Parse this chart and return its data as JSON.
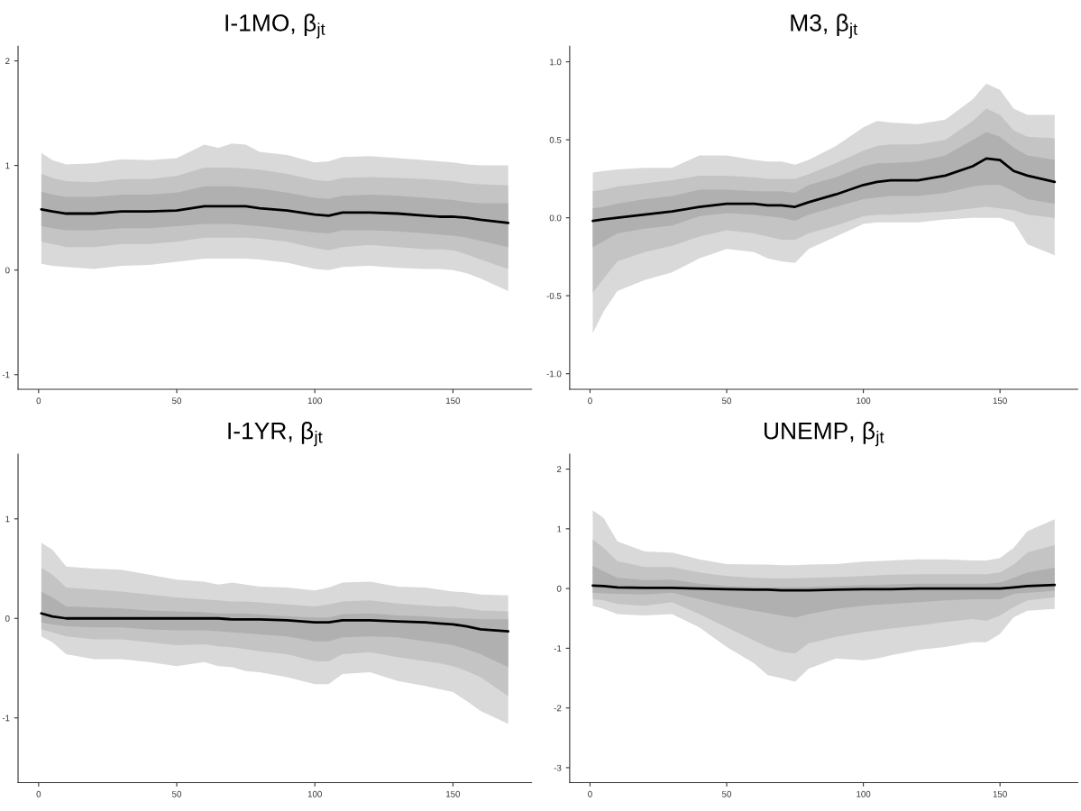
{
  "chart_data": [
    {
      "type": "line",
      "title": "I-1MO, β$_{jt}$",
      "x": [
        1,
        5,
        10,
        20,
        30,
        40,
        50,
        60,
        65,
        70,
        75,
        80,
        90,
        100,
        105,
        110,
        120,
        130,
        140,
        145,
        150,
        155,
        160,
        170
      ],
      "xlim": [
        -7.45,
        178.45
      ],
      "xticks": [
        0,
        50,
        100,
        150
      ],
      "ylim": [
        -1.14,
        2.14
      ],
      "yticks": [
        -1,
        0,
        1,
        2
      ],
      "grid": false,
      "legend": false,
      "series": [
        {
          "color": "#d9d9d9",
          "values": [
            null,
            null,
            null,
            null,
            null,
            null,
            null,
            null,
            null,
            null,
            null,
            null,
            null,
            null,
            null,
            null,
            null,
            null,
            null,
            null,
            null,
            null,
            null,
            null
          ],
          "lower": [
            0.06,
            0.04,
            0.03,
            0.01,
            0.04,
            0.05,
            0.08,
            0.11,
            0.11,
            0.11,
            0.11,
            0.1,
            0.07,
            0.01,
            0.0,
            0.03,
            0.04,
            0.02,
            0.01,
            0.01,
            0.0,
            -0.03,
            -0.08,
            -0.2
          ],
          "upper": [
            1.12,
            1.05,
            1.01,
            1.02,
            1.06,
            1.05,
            1.07,
            1.2,
            1.17,
            1.21,
            1.2,
            1.13,
            1.1,
            1.03,
            1.04,
            1.08,
            1.09,
            1.07,
            1.05,
            1.04,
            1.03,
            1.01,
            1.0,
            1.0
          ]
        },
        {
          "color": "#c4c4c4",
          "values": [
            null,
            null,
            null,
            null,
            null,
            null,
            null,
            null,
            null,
            null,
            null,
            null,
            null,
            null,
            null,
            null,
            null,
            null,
            null,
            null,
            null,
            null,
            null,
            null
          ],
          "lower": [
            0.27,
            0.25,
            0.22,
            0.22,
            0.25,
            0.25,
            0.27,
            0.31,
            0.31,
            0.31,
            0.31,
            0.3,
            0.27,
            0.21,
            0.19,
            0.22,
            0.24,
            0.22,
            0.2,
            0.2,
            0.19,
            0.15,
            0.1,
            0.01
          ],
          "upper": [
            0.92,
            0.88,
            0.85,
            0.84,
            0.87,
            0.87,
            0.9,
            0.98,
            0.98,
            0.98,
            0.97,
            0.96,
            0.92,
            0.86,
            0.85,
            0.88,
            0.89,
            0.88,
            0.87,
            0.86,
            0.85,
            0.83,
            0.82,
            0.81
          ]
        },
        {
          "color": "#b0b0b0",
          "values": [
            null,
            null,
            null,
            null,
            null,
            null,
            null,
            null,
            null,
            null,
            null,
            null,
            null,
            null,
            null,
            null,
            null,
            null,
            null,
            null,
            null,
            null,
            null,
            null
          ],
          "lower": [
            0.42,
            0.4,
            0.38,
            0.38,
            0.4,
            0.4,
            0.42,
            0.44,
            0.44,
            0.44,
            0.43,
            0.42,
            0.39,
            0.36,
            0.35,
            0.38,
            0.38,
            0.37,
            0.35,
            0.34,
            0.33,
            0.31,
            0.28,
            0.22
          ],
          "upper": [
            0.75,
            0.72,
            0.7,
            0.7,
            0.72,
            0.72,
            0.74,
            0.8,
            0.8,
            0.8,
            0.79,
            0.78,
            0.74,
            0.69,
            0.68,
            0.71,
            0.72,
            0.71,
            0.69,
            0.68,
            0.67,
            0.65,
            0.64,
            0.64
          ]
        },
        {
          "color": "#000000",
          "values": [
            0.58,
            0.56,
            0.54,
            0.54,
            0.56,
            0.56,
            0.57,
            0.61,
            0.61,
            0.61,
            0.61,
            0.59,
            0.57,
            0.53,
            0.52,
            0.55,
            0.55,
            0.54,
            0.52,
            0.51,
            0.51,
            0.5,
            0.48,
            0.45
          ]
        }
      ]
    },
    {
      "type": "line",
      "title": "M3, β$_{jt}$",
      "x": [
        1,
        5,
        10,
        20,
        30,
        40,
        50,
        60,
        65,
        70,
        75,
        80,
        90,
        100,
        105,
        110,
        120,
        130,
        140,
        145,
        150,
        155,
        160,
        170
      ],
      "xlim": [
        -7.45,
        178.45
      ],
      "xticks": [
        0,
        50,
        100,
        150
      ],
      "ylim": [
        -1.1,
        1.1
      ],
      "yticks": [
        {
          "value": -1,
          "label": "-1.0"
        },
        {
          "value": -0.5,
          "label": "-0.5"
        },
        {
          "value": 0,
          "label": "0.0"
        },
        {
          "value": 0.5,
          "label": "0.5"
        },
        {
          "value": 1,
          "label": "1.0"
        }
      ],
      "grid": false,
      "legend": false,
      "series": [
        {
          "color": "#d9d9d9",
          "values": [
            null,
            null,
            null,
            null,
            null,
            null,
            null,
            null,
            null,
            null,
            null,
            null,
            null,
            null,
            null,
            null,
            null,
            null,
            null,
            null,
            null,
            null,
            null,
            null
          ],
          "lower": [
            -0.74,
            -0.6,
            -0.47,
            -0.4,
            -0.35,
            -0.26,
            -0.2,
            -0.22,
            -0.26,
            -0.28,
            -0.29,
            -0.2,
            -0.12,
            -0.04,
            -0.03,
            -0.03,
            -0.03,
            -0.01,
            0.0,
            0.0,
            0.0,
            -0.03,
            -0.17,
            -0.24
          ],
          "upper": [
            0.29,
            0.3,
            0.31,
            0.32,
            0.32,
            0.4,
            0.4,
            0.37,
            0.36,
            0.36,
            0.34,
            0.37,
            0.46,
            0.58,
            0.62,
            0.61,
            0.6,
            0.63,
            0.76,
            0.86,
            0.82,
            0.7,
            0.66,
            0.66
          ]
        },
        {
          "color": "#c4c4c4",
          "values": [
            null,
            null,
            null,
            null,
            null,
            null,
            null,
            null,
            null,
            null,
            null,
            null,
            null,
            null,
            null,
            null,
            null,
            null,
            null,
            null,
            null,
            null,
            null,
            null
          ],
          "lower": [
            -0.48,
            -0.39,
            -0.28,
            -0.22,
            -0.18,
            -0.12,
            -0.08,
            -0.1,
            -0.12,
            -0.14,
            -0.14,
            -0.1,
            -0.05,
            0.01,
            0.02,
            0.02,
            0.03,
            0.04,
            0.06,
            0.07,
            0.06,
            0.05,
            0.02,
            0.0
          ],
          "upper": [
            0.17,
            0.18,
            0.2,
            0.22,
            0.24,
            0.27,
            0.27,
            0.26,
            0.25,
            0.25,
            0.25,
            0.28,
            0.35,
            0.43,
            0.46,
            0.47,
            0.47,
            0.5,
            0.62,
            0.7,
            0.66,
            0.56,
            0.52,
            0.51
          ]
        },
        {
          "color": "#b0b0b0",
          "values": [
            null,
            null,
            null,
            null,
            null,
            null,
            null,
            null,
            null,
            null,
            null,
            null,
            null,
            null,
            null,
            null,
            null,
            null,
            null,
            null,
            null,
            null,
            null,
            null
          ],
          "lower": [
            -0.19,
            -0.15,
            -0.1,
            -0.07,
            -0.05,
            0.01,
            0.03,
            0.02,
            0.01,
            0.0,
            -0.02,
            0.02,
            0.07,
            0.12,
            0.13,
            0.14,
            0.14,
            0.16,
            0.2,
            0.21,
            0.21,
            0.17,
            0.12,
            0.09
          ],
          "upper": [
            0.06,
            0.07,
            0.09,
            0.12,
            0.14,
            0.18,
            0.18,
            0.17,
            0.17,
            0.17,
            0.16,
            0.21,
            0.26,
            0.33,
            0.35,
            0.35,
            0.36,
            0.4,
            0.5,
            0.55,
            0.52,
            0.45,
            0.4,
            0.37
          ]
        },
        {
          "color": "#000000",
          "values": [
            -0.02,
            -0.01,
            0.0,
            0.02,
            0.04,
            0.07,
            0.09,
            0.09,
            0.08,
            0.08,
            0.07,
            0.1,
            0.15,
            0.21,
            0.23,
            0.24,
            0.24,
            0.27,
            0.33,
            0.38,
            0.37,
            0.3,
            0.27,
            0.23
          ]
        }
      ]
    },
    {
      "type": "line",
      "title": "I-1YR, β$_{jt}$",
      "x": [
        1,
        5,
        10,
        20,
        30,
        40,
        50,
        60,
        65,
        70,
        75,
        80,
        90,
        100,
        105,
        110,
        120,
        130,
        140,
        145,
        150,
        155,
        160,
        170
      ],
      "xlim": [
        -7.45,
        178.45
      ],
      "xticks": [
        0,
        50,
        100,
        150
      ],
      "ylim": [
        -1.65,
        1.65
      ],
      "yticks": [
        -1,
        0,
        1
      ],
      "grid": false,
      "legend": false,
      "series": [
        {
          "color": "#d9d9d9",
          "values": [
            null,
            null,
            null,
            null,
            null,
            null,
            null,
            null,
            null,
            null,
            null,
            null,
            null,
            null,
            null,
            null,
            null,
            null,
            null,
            null,
            null,
            null,
            null,
            null
          ],
          "lower": [
            -0.18,
            -0.24,
            -0.36,
            -0.41,
            -0.41,
            -0.44,
            -0.48,
            -0.44,
            -0.48,
            -0.49,
            -0.53,
            -0.54,
            -0.59,
            -0.66,
            -0.66,
            -0.56,
            -0.54,
            -0.63,
            -0.68,
            -0.71,
            -0.74,
            -0.83,
            -0.93,
            -1.06
          ],
          "upper": [
            0.76,
            0.69,
            0.52,
            0.5,
            0.49,
            0.44,
            0.39,
            0.37,
            0.34,
            0.36,
            0.34,
            0.32,
            0.31,
            0.28,
            0.31,
            0.36,
            0.37,
            0.32,
            0.31,
            0.29,
            0.27,
            0.26,
            0.24,
            0.23
          ]
        },
        {
          "color": "#c4c4c4",
          "values": [
            null,
            null,
            null,
            null,
            null,
            null,
            null,
            null,
            null,
            null,
            null,
            null,
            null,
            null,
            null,
            null,
            null,
            null,
            null,
            null,
            null,
            null,
            null,
            null
          ],
          "lower": [
            -0.11,
            -0.14,
            -0.18,
            -0.21,
            -0.21,
            -0.24,
            -0.27,
            -0.26,
            -0.28,
            -0.29,
            -0.31,
            -0.33,
            -0.36,
            -0.43,
            -0.43,
            -0.36,
            -0.34,
            -0.39,
            -0.43,
            -0.45,
            -0.48,
            -0.53,
            -0.59,
            -0.78
          ],
          "upper": [
            0.51,
            0.44,
            0.31,
            0.29,
            0.27,
            0.24,
            0.21,
            0.19,
            0.18,
            0.17,
            0.17,
            0.16,
            0.14,
            0.12,
            0.14,
            0.17,
            0.18,
            0.15,
            0.13,
            0.12,
            0.12,
            0.1,
            0.08,
            0.07
          ]
        },
        {
          "color": "#b0b0b0",
          "values": [
            null,
            null,
            null,
            null,
            null,
            null,
            null,
            null,
            null,
            null,
            null,
            null,
            null,
            null,
            null,
            null,
            null,
            null,
            null,
            null,
            null,
            null,
            null,
            null
          ],
          "lower": [
            -0.04,
            -0.06,
            -0.08,
            -0.09,
            -0.09,
            -0.11,
            -0.12,
            -0.12,
            -0.13,
            -0.14,
            -0.15,
            -0.16,
            -0.18,
            -0.23,
            -0.23,
            -0.19,
            -0.18,
            -0.19,
            -0.23,
            -0.25,
            -0.27,
            -0.31,
            -0.36,
            -0.49
          ],
          "upper": [
            0.27,
            0.21,
            0.12,
            0.11,
            0.1,
            0.08,
            0.07,
            0.06,
            0.05,
            0.05,
            0.05,
            0.04,
            0.02,
            0.01,
            0.01,
            0.04,
            0.05,
            0.03,
            0.02,
            0.01,
            0.0,
            0.0,
            -0.01,
            -0.01
          ]
        },
        {
          "color": "#000000",
          "values": [
            0.05,
            0.02,
            0.0,
            0.0,
            0.0,
            0.0,
            0.0,
            0.0,
            0.0,
            -0.01,
            -0.01,
            -0.01,
            -0.02,
            -0.04,
            -0.04,
            -0.02,
            -0.02,
            -0.03,
            -0.04,
            -0.05,
            -0.06,
            -0.08,
            -0.11,
            -0.13
          ]
        }
      ]
    },
    {
      "type": "line",
      "title": "UNEMP, β$_{jt}$",
      "x": [
        1,
        5,
        10,
        20,
        30,
        40,
        50,
        60,
        65,
        70,
        75,
        80,
        90,
        100,
        105,
        110,
        120,
        130,
        140,
        145,
        150,
        155,
        160,
        170
      ],
      "xlim": [
        -7.45,
        178.45
      ],
      "xticks": [
        0,
        50,
        100,
        150
      ],
      "ylim": [
        -3.25,
        2.25
      ],
      "yticks": [
        -3,
        -2,
        -1,
        0,
        1,
        2
      ],
      "grid": false,
      "legend": false,
      "series": [
        {
          "color": "#d9d9d9",
          "values": [
            null,
            null,
            null,
            null,
            null,
            null,
            null,
            null,
            null,
            null,
            null,
            null,
            null,
            null,
            null,
            null,
            null,
            null,
            null,
            null,
            null,
            null,
            null,
            null
          ],
          "lower": [
            -0.29,
            -0.34,
            -0.43,
            -0.45,
            -0.43,
            -0.65,
            -0.98,
            -1.25,
            -1.45,
            -1.5,
            -1.56,
            -1.34,
            -1.17,
            -1.2,
            -1.17,
            -1.12,
            -1.03,
            -0.98,
            -0.9,
            -0.9,
            -0.76,
            -0.48,
            -0.37,
            -0.34
          ],
          "upper": [
            1.31,
            1.18,
            0.79,
            0.62,
            0.6,
            0.49,
            0.41,
            0.4,
            0.4,
            0.39,
            0.39,
            0.4,
            0.41,
            0.45,
            0.46,
            0.47,
            0.49,
            0.49,
            0.47,
            0.47,
            0.51,
            0.68,
            0.96,
            1.16
          ]
        },
        {
          "color": "#c4c4c4",
          "values": [
            null,
            null,
            null,
            null,
            null,
            null,
            null,
            null,
            null,
            null,
            null,
            null,
            null,
            null,
            null,
            null,
            null,
            null,
            null,
            null,
            null,
            null,
            null,
            null
          ],
          "lower": [
            -0.18,
            -0.2,
            -0.26,
            -0.29,
            -0.23,
            -0.43,
            -0.65,
            -0.87,
            -0.98,
            -1.06,
            -1.09,
            -0.92,
            -0.81,
            -0.73,
            -0.7,
            -0.67,
            -0.62,
            -0.56,
            -0.51,
            -0.54,
            -0.45,
            -0.31,
            -0.2,
            -0.15
          ],
          "upper": [
            0.82,
            0.68,
            0.46,
            0.36,
            0.36,
            0.27,
            0.21,
            0.18,
            0.17,
            0.17,
            0.17,
            0.18,
            0.19,
            0.21,
            0.22,
            0.23,
            0.24,
            0.24,
            0.24,
            0.24,
            0.27,
            0.4,
            0.6,
            0.73
          ]
        },
        {
          "color": "#b0b0b0",
          "values": [
            null,
            null,
            null,
            null,
            null,
            null,
            null,
            null,
            null,
            null,
            null,
            null,
            null,
            null,
            null,
            null,
            null,
            null,
            null,
            null,
            null,
            null,
            null,
            null
          ],
          "lower": [
            -0.07,
            -0.08,
            -0.09,
            -0.1,
            -0.07,
            -0.18,
            -0.29,
            -0.37,
            -0.41,
            -0.45,
            -0.49,
            -0.43,
            -0.34,
            -0.29,
            -0.27,
            -0.26,
            -0.23,
            -0.2,
            -0.18,
            -0.18,
            -0.18,
            -0.09,
            -0.07,
            -0.04
          ],
          "upper": [
            0.38,
            0.29,
            0.18,
            0.14,
            0.15,
            0.08,
            0.04,
            0.03,
            0.02,
            0.02,
            0.02,
            0.03,
            0.04,
            0.06,
            0.06,
            0.07,
            0.08,
            0.08,
            0.08,
            0.08,
            0.1,
            0.18,
            0.27,
            0.35
          ]
        },
        {
          "color": "#000000",
          "values": [
            0.05,
            0.04,
            0.02,
            0.01,
            0.01,
            0.0,
            -0.01,
            -0.02,
            -0.02,
            -0.03,
            -0.03,
            -0.03,
            -0.02,
            -0.01,
            -0.01,
            -0.01,
            0.0,
            0.0,
            0.0,
            0.0,
            0.0,
            0.02,
            0.04,
            0.06
          ]
        }
      ]
    }
  ]
}
